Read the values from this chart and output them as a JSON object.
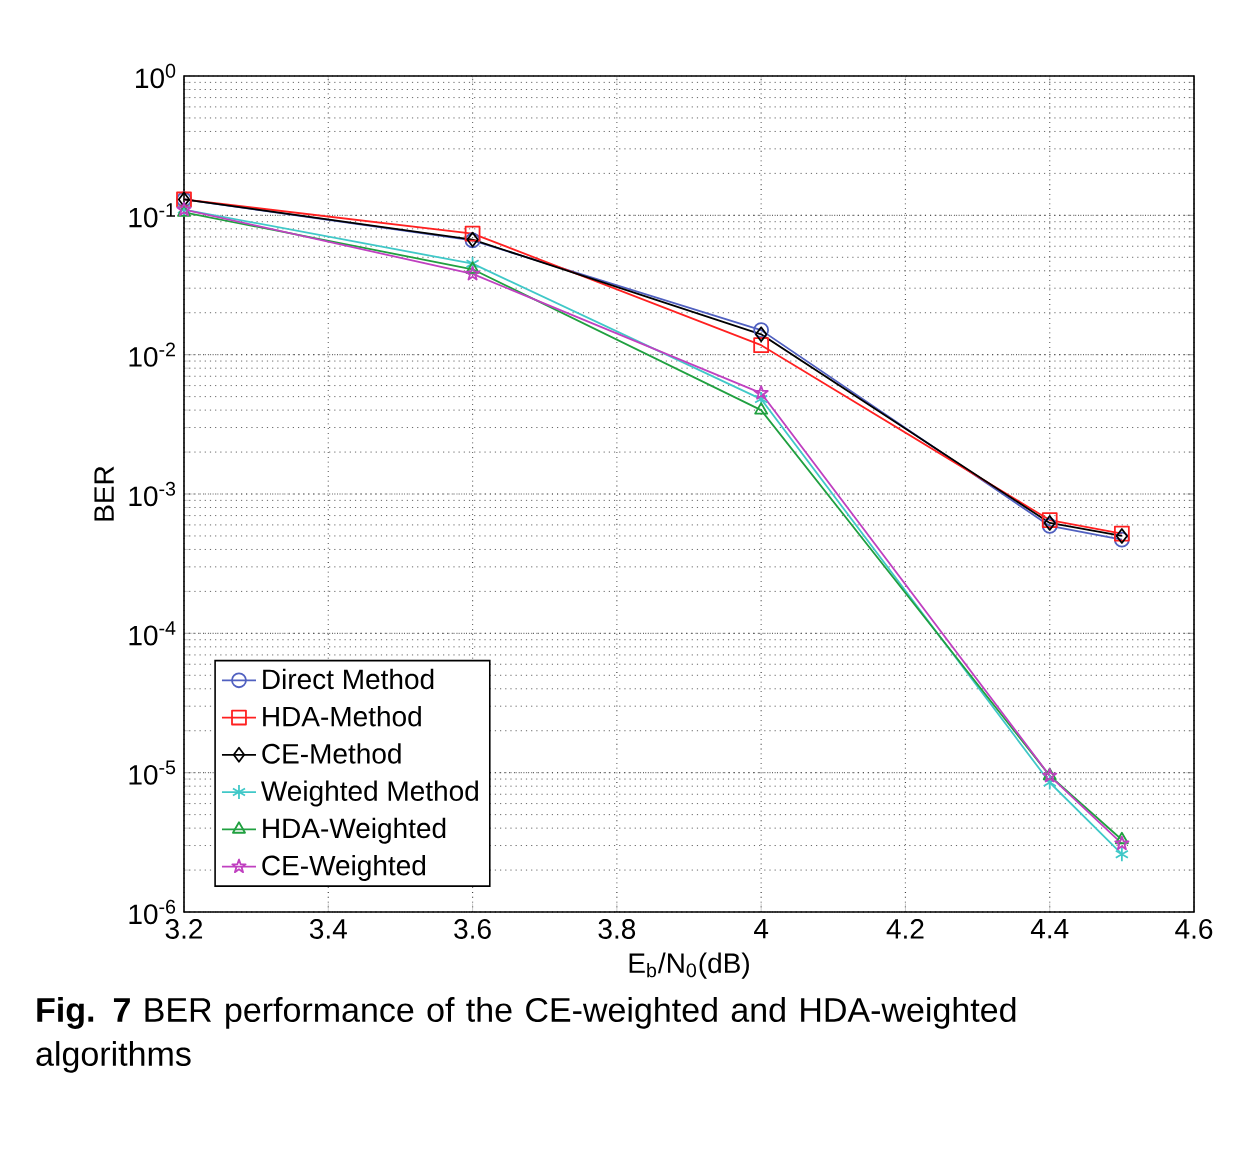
{
  "chart_data": {
    "type": "line",
    "xlabel": "E$_{b}$/N$_{0}$(dB)",
    "ylabel": "BER",
    "x": [
      3.2,
      3.6,
      4.0,
      4.4,
      4.5
    ],
    "series": [
      {
        "name": "Direct Method",
        "color": "#5060c0",
        "marker": "circle",
        "values": [
          0.13,
          0.066,
          0.015,
          0.00059,
          0.00047
        ]
      },
      {
        "name": "HDA-Method",
        "color": "#ff2020",
        "marker": "square",
        "values": [
          0.13,
          0.074,
          0.0117,
          0.00065,
          0.00052
        ]
      },
      {
        "name": "CE-Method",
        "color": "#000000",
        "marker": "diamond",
        "values": [
          0.13,
          0.067,
          0.014,
          0.00062,
          0.0005
        ]
      },
      {
        "name": "Weighted Method",
        "color": "#40c8c8",
        "marker": "cross",
        "values": [
          0.11,
          0.045,
          0.0048,
          8.5e-06,
          2.6e-06
        ]
      },
      {
        "name": "HDA-Weighted",
        "color": "#20a040",
        "marker": "triangle",
        "values": [
          0.105,
          0.041,
          0.004,
          9.5e-06,
          3.3e-06
        ]
      },
      {
        "name": "CE-Weighted",
        "color": "#c040c0",
        "marker": "star",
        "values": [
          0.11,
          0.038,
          0.0053,
          9.5e-06,
          3.1e-06
        ]
      }
    ],
    "log": "y",
    "xlim": [
      3.2,
      4.6
    ],
    "xticks": [
      3.2,
      3.4,
      3.6,
      3.8,
      4,
      4.2,
      4.4,
      4.6
    ],
    "ylim": [
      1e-06,
      1
    ],
    "yticks": [
      {
        "value": 1e-06,
        "label": "10$^{-6}$"
      },
      {
        "value": 1e-05,
        "label": "10$^{-5}$"
      },
      {
        "value": 0.0001,
        "label": "10$^{-4}$"
      },
      {
        "value": 0.001,
        "label": "10$^{-3}$"
      },
      {
        "value": 0.01,
        "label": "10$^{-2}$"
      },
      {
        "value": 0.1,
        "label": "10$^{-1}$"
      },
      {
        "value": 1,
        "label": "10$^{0}$"
      }
    ],
    "grid": true,
    "legend": "bottom left",
    "line_style": "solid",
    "annotations": [
      "**Fig. 7** BER performance of the CE-weighted and HDA-weighted algorithms"
    ]
  }
}
